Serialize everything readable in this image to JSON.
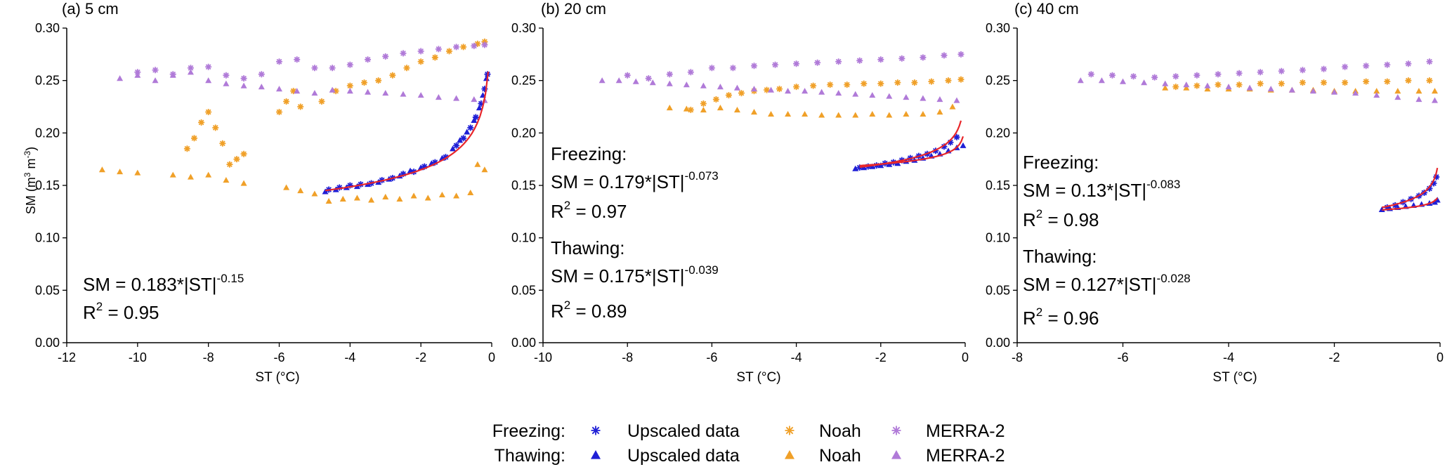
{
  "colors": {
    "upscaled": "#1f1fd6",
    "noah": "#f0a028",
    "merra": "#b07ad8",
    "fit": "#e8262a",
    "axis": "#000000"
  },
  "legend": {
    "freezing_label": "Freezing:",
    "thawing_label": "Thawing:",
    "freezing_marker": "star",
    "thawing_marker": "triangle",
    "series": [
      "Upscaled data",
      "Noah",
      "MERRA-2"
    ]
  },
  "chart_data": [
    {
      "type": "scatter",
      "title": "(a) 5 cm",
      "xlabel": "ST (°C)",
      "ylabel": "SM (m3 m-3)",
      "xlim": [
        -12,
        0
      ],
      "ylim": [
        0.0,
        0.3
      ],
      "xticks": [
        -12,
        -10,
        -8,
        -6,
        -4,
        -2,
        0
      ],
      "yticks": [
        0.0,
        0.05,
        0.1,
        0.15,
        0.2,
        0.25,
        0.3
      ],
      "xtick_labels": [
        "-12",
        "-10",
        "-8",
        "-6",
        "-4",
        "-2",
        "0"
      ],
      "ytick_labels": [
        "0.00",
        "0.05",
        "0.10",
        "0.15",
        "0.20",
        "0.25",
        "0.30"
      ],
      "annotations": [
        {
          "eq_prefix": "SM = 0.183*|ST|",
          "exponent": "-0.15",
          "r2_prefix": "R",
          "r2_sup": "2",
          "r2_value": " = 0.95"
        }
      ],
      "fits": [
        {
          "phase": "freezing",
          "a": 0.183,
          "b": -0.15,
          "xmin": -4.7,
          "xmax": -0.1
        }
      ],
      "series": [
        {
          "name": "Upscaled data",
          "phase": "freezing",
          "marker": "star",
          "x": [
            -4.6,
            -4.3,
            -4.0,
            -3.7,
            -3.4,
            -3.1,
            -2.8,
            -2.5,
            -2.2,
            -1.9,
            -1.6,
            -1.3,
            -1.0,
            -0.8,
            -0.6,
            -0.45,
            -0.3,
            -0.2,
            -0.12
          ],
          "y": [
            0.146,
            0.148,
            0.15,
            0.151,
            0.152,
            0.155,
            0.157,
            0.161,
            0.163,
            0.168,
            0.172,
            0.177,
            0.188,
            0.195,
            0.205,
            0.215,
            0.228,
            0.242,
            0.256
          ]
        },
        {
          "name": "Upscaled data",
          "phase": "thawing",
          "marker": "triangle",
          "x": [
            -4.7,
            -4.4,
            -4.1,
            -3.8,
            -3.5,
            -3.2,
            -2.9,
            -2.6,
            -2.3,
            -2.0,
            -1.7,
            -1.4,
            -1.1,
            -0.9,
            -0.7,
            -0.5,
            -0.35,
            -0.25,
            -0.15
          ],
          "y": [
            0.144,
            0.146,
            0.148,
            0.149,
            0.151,
            0.153,
            0.156,
            0.159,
            0.164,
            0.167,
            0.171,
            0.176,
            0.185,
            0.193,
            0.201,
            0.212,
            0.224,
            0.236,
            0.252
          ]
        },
        {
          "name": "Noah",
          "phase": "freezing",
          "marker": "star",
          "x": [
            -8.6,
            -8.4,
            -8.2,
            -8.0,
            -7.8,
            -7.6,
            -7.4,
            -7.2,
            -7.0,
            -6.0,
            -5.8,
            -5.6,
            -5.4,
            -4.8,
            -4.4,
            -4.0,
            -3.6,
            -3.2,
            -2.8,
            -2.4,
            -2.0,
            -1.6,
            -1.2,
            -0.8,
            -0.4,
            -0.2
          ],
          "y": [
            0.185,
            0.195,
            0.21,
            0.22,
            0.205,
            0.19,
            0.17,
            0.175,
            0.18,
            0.22,
            0.23,
            0.24,
            0.225,
            0.23,
            0.24,
            0.245,
            0.248,
            0.25,
            0.255,
            0.262,
            0.268,
            0.272,
            0.278,
            0.282,
            0.285,
            0.287
          ]
        },
        {
          "name": "Noah",
          "phase": "thawing",
          "marker": "triangle",
          "x": [
            -11.0,
            -10.5,
            -10.0,
            -9.0,
            -8.5,
            -8.0,
            -7.5,
            -7.0,
            -5.8,
            -5.4,
            -5.0,
            -4.6,
            -4.2,
            -3.8,
            -3.4,
            -3.0,
            -2.6,
            -2.2,
            -1.8,
            -1.4,
            -1.0,
            -0.6,
            -0.4,
            -0.2
          ],
          "y": [
            0.165,
            0.163,
            0.162,
            0.16,
            0.158,
            0.16,
            0.155,
            0.152,
            0.148,
            0.145,
            0.142,
            0.135,
            0.137,
            0.138,
            0.136,
            0.139,
            0.137,
            0.14,
            0.138,
            0.141,
            0.14,
            0.143,
            0.17,
            0.165
          ]
        },
        {
          "name": "MERRA-2",
          "phase": "freezing",
          "marker": "star",
          "x": [
            -10.0,
            -9.5,
            -9.0,
            -8.5,
            -8.0,
            -7.5,
            -7.0,
            -6.5,
            -6.0,
            -5.5,
            -5.0,
            -4.5,
            -4.0,
            -3.5,
            -3.0,
            -2.5,
            -2.0,
            -1.5,
            -1.0,
            -0.5,
            -0.2
          ],
          "y": [
            0.258,
            0.26,
            0.256,
            0.262,
            0.263,
            0.255,
            0.252,
            0.256,
            0.268,
            0.27,
            0.262,
            0.262,
            0.265,
            0.27,
            0.273,
            0.276,
            0.278,
            0.28,
            0.282,
            0.283,
            0.284
          ]
        },
        {
          "name": "MERRA-2",
          "phase": "thawing",
          "marker": "triangle",
          "x": [
            -10.5,
            -10.0,
            -9.5,
            -9.0,
            -8.5,
            -8.0,
            -7.5,
            -7.0,
            -6.5,
            -6.0,
            -5.5,
            -5.0,
            -4.5,
            -4.0,
            -3.5,
            -3.0,
            -2.5,
            -2.0,
            -1.5,
            -1.0,
            -0.5,
            -0.2
          ],
          "y": [
            0.252,
            0.255,
            0.25,
            0.255,
            0.258,
            0.25,
            0.247,
            0.245,
            0.244,
            0.242,
            0.24,
            0.238,
            0.241,
            0.24,
            0.239,
            0.238,
            0.237,
            0.236,
            0.234,
            0.233,
            0.232,
            0.231
          ]
        }
      ]
    },
    {
      "type": "scatter",
      "title": "(b) 20 cm",
      "xlabel": "ST (°C)",
      "ylabel": "",
      "xlim": [
        -10,
        0
      ],
      "ylim": [
        0.0,
        0.3
      ],
      "xticks": [
        -10,
        -8,
        -6,
        -4,
        -2,
        0
      ],
      "yticks": [
        0.0,
        0.05,
        0.1,
        0.15,
        0.2,
        0.25,
        0.3
      ],
      "xtick_labels": [
        "-10",
        "-8",
        "-6",
        "-4",
        "-2",
        "0"
      ],
      "ytick_labels": [
        "0.00",
        "0.05",
        "0.10",
        "0.15",
        "0.20",
        "0.25",
        "0.30"
      ],
      "annotations": [
        {
          "heading": "Freezing:",
          "eq_prefix": "SM = 0.179*|ST|",
          "exponent": "-0.073",
          "r2_prefix": "R",
          "r2_sup": "2",
          "r2_value": " = 0.97"
        },
        {
          "heading": "Thawing:",
          "eq_prefix": "SM = 0.175*|ST|",
          "exponent": "-0.039",
          "r2_prefix": "R",
          "r2_sup": "2",
          "r2_value": " = 0.89"
        }
      ],
      "fits": [
        {
          "phase": "freezing",
          "a": 0.179,
          "b": -0.073,
          "xmin": -2.5,
          "xmax": -0.1
        },
        {
          "phase": "thawing",
          "a": 0.175,
          "b": -0.039,
          "xmin": -2.5,
          "xmax": -0.05
        }
      ],
      "series": [
        {
          "name": "Upscaled data",
          "phase": "freezing",
          "marker": "star",
          "x": [
            -2.5,
            -2.3,
            -2.1,
            -1.9,
            -1.7,
            -1.5,
            -1.3,
            -1.1,
            -0.9,
            -0.7,
            -0.5,
            -0.35,
            -0.2
          ],
          "y": [
            0.167,
            0.168,
            0.169,
            0.171,
            0.172,
            0.174,
            0.176,
            0.178,
            0.18,
            0.183,
            0.187,
            0.191,
            0.196
          ]
        },
        {
          "name": "Upscaled data",
          "phase": "thawing",
          "marker": "triangle",
          "x": [
            -2.6,
            -2.4,
            -2.2,
            -2.0,
            -1.8,
            -1.6,
            -1.4,
            -1.2,
            -1.0,
            -0.8,
            -0.6,
            -0.4,
            -0.2,
            -0.05
          ],
          "y": [
            0.166,
            0.167,
            0.168,
            0.169,
            0.17,
            0.171,
            0.173,
            0.174,
            0.176,
            0.178,
            0.18,
            0.183,
            0.186,
            0.188
          ]
        },
        {
          "name": "Noah",
          "phase": "freezing",
          "marker": "star",
          "x": [
            -6.5,
            -6.2,
            -5.9,
            -5.6,
            -5.3,
            -5.0,
            -4.7,
            -4.4,
            -4.0,
            -3.6,
            -3.2,
            -2.8,
            -2.4,
            -2.0,
            -1.6,
            -1.2,
            -0.8,
            -0.4,
            -0.1
          ],
          "y": [
            0.222,
            0.228,
            0.232,
            0.236,
            0.238,
            0.24,
            0.241,
            0.242,
            0.244,
            0.245,
            0.246,
            0.246,
            0.247,
            0.247,
            0.248,
            0.248,
            0.249,
            0.25,
            0.251
          ]
        },
        {
          "name": "Noah",
          "phase": "thawing",
          "marker": "triangle",
          "x": [
            -7.0,
            -6.6,
            -6.2,
            -5.8,
            -5.4,
            -5.0,
            -4.6,
            -4.2,
            -3.8,
            -3.4,
            -3.0,
            -2.6,
            -2.2,
            -1.8,
            -1.4,
            -1.0,
            -0.6,
            -0.3
          ],
          "y": [
            0.224,
            0.223,
            0.222,
            0.224,
            0.222,
            0.22,
            0.218,
            0.218,
            0.218,
            0.217,
            0.217,
            0.217,
            0.218,
            0.217,
            0.218,
            0.218,
            0.22,
            0.225
          ]
        },
        {
          "name": "MERRA-2",
          "phase": "freezing",
          "marker": "star",
          "x": [
            -8.0,
            -7.5,
            -7.0,
            -6.5,
            -6.0,
            -5.5,
            -5.0,
            -4.5,
            -4.0,
            -3.5,
            -3.0,
            -2.5,
            -2.0,
            -1.5,
            -1.0,
            -0.5,
            -0.1
          ],
          "y": [
            0.255,
            0.252,
            0.256,
            0.258,
            0.262,
            0.262,
            0.264,
            0.265,
            0.266,
            0.267,
            0.268,
            0.269,
            0.27,
            0.271,
            0.272,
            0.274,
            0.275
          ]
        },
        {
          "name": "MERRA-2",
          "phase": "thawing",
          "marker": "triangle",
          "x": [
            -8.6,
            -8.2,
            -7.8,
            -7.4,
            -7.0,
            -6.6,
            -6.2,
            -5.8,
            -5.4,
            -5.0,
            -4.6,
            -4.2,
            -3.8,
            -3.4,
            -3.0,
            -2.6,
            -2.2,
            -1.8,
            -1.4,
            -1.0,
            -0.6,
            -0.2
          ],
          "y": [
            0.25,
            0.25,
            0.249,
            0.248,
            0.247,
            0.246,
            0.245,
            0.244,
            0.243,
            0.242,
            0.241,
            0.24,
            0.24,
            0.239,
            0.238,
            0.237,
            0.236,
            0.235,
            0.234,
            0.233,
            0.232,
            0.231
          ]
        }
      ]
    },
    {
      "type": "scatter",
      "title": "(c) 40 cm",
      "xlabel": "ST (°C)",
      "ylabel": "",
      "xlim": [
        -8,
        0
      ],
      "ylim": [
        0.0,
        0.3
      ],
      "xticks": [
        -8,
        -6,
        -4,
        -2,
        0
      ],
      "yticks": [
        0.0,
        0.05,
        0.1,
        0.15,
        0.2,
        0.25,
        0.3
      ],
      "xtick_labels": [
        "-8",
        "-6",
        "-4",
        "-2",
        "0"
      ],
      "ytick_labels": [
        "0.00",
        "0.05",
        "0.10",
        "0.15",
        "0.20",
        "0.25",
        "0.30"
      ],
      "annotations": [
        {
          "heading": "Freezing:",
          "eq_prefix": "SM = 0.13*|ST|",
          "exponent": "-0.083",
          "r2_prefix": "R",
          "r2_sup": "2",
          "r2_value": " = 0.98"
        },
        {
          "heading": "Thawing:",
          "eq_prefix": "SM = 0.127*|ST|",
          "exponent": "-0.028",
          "r2_prefix": "R",
          "r2_sup": "2",
          "r2_value": " = 0.96"
        }
      ],
      "fits": [
        {
          "phase": "freezing",
          "a": 0.13,
          "b": -0.083,
          "xmin": -1.1,
          "xmax": -0.05
        },
        {
          "phase": "thawing",
          "a": 0.127,
          "b": -0.028,
          "xmin": -1.1,
          "xmax": -0.05
        }
      ],
      "series": [
        {
          "name": "Upscaled data",
          "phase": "freezing",
          "marker": "star",
          "x": [
            -1.0,
            -0.85,
            -0.7,
            -0.55,
            -0.4,
            -0.3,
            -0.2,
            -0.12,
            -0.07
          ],
          "y": [
            0.129,
            0.131,
            0.134,
            0.137,
            0.14,
            0.143,
            0.147,
            0.152,
            0.158
          ]
        },
        {
          "name": "Upscaled data",
          "phase": "thawing",
          "marker": "triangle",
          "x": [
            -1.1,
            -0.95,
            -0.8,
            -0.65,
            -0.5,
            -0.35,
            -0.2,
            -0.1,
            -0.05
          ],
          "y": [
            0.127,
            0.128,
            0.129,
            0.13,
            0.131,
            0.132,
            0.133,
            0.134,
            0.136
          ]
        },
        {
          "name": "Noah",
          "phase": "freezing",
          "marker": "star",
          "x": [
            -5.0,
            -4.6,
            -4.2,
            -3.8,
            -3.4,
            -3.0,
            -2.6,
            -2.2,
            -1.8,
            -1.4,
            -1.0,
            -0.6,
            -0.2
          ],
          "y": [
            0.244,
            0.245,
            0.246,
            0.246,
            0.247,
            0.247,
            0.248,
            0.248,
            0.248,
            0.249,
            0.249,
            0.25,
            0.25
          ]
        },
        {
          "name": "Noah",
          "phase": "thawing",
          "marker": "triangle",
          "x": [
            -5.2,
            -4.8,
            -4.4,
            -4.0,
            -3.6,
            -3.2,
            -2.8,
            -2.4,
            -2.0,
            -1.6,
            -1.2,
            -0.8,
            -0.4,
            -0.1
          ],
          "y": [
            0.243,
            0.243,
            0.242,
            0.242,
            0.242,
            0.241,
            0.241,
            0.241,
            0.24,
            0.24,
            0.24,
            0.24,
            0.24,
            0.24
          ]
        },
        {
          "name": "MERRA-2",
          "phase": "freezing",
          "marker": "star",
          "x": [
            -6.6,
            -6.2,
            -5.8,
            -5.4,
            -5.0,
            -4.6,
            -4.2,
            -3.8,
            -3.4,
            -3.0,
            -2.6,
            -2.2,
            -1.8,
            -1.4,
            -1.0,
            -0.6,
            -0.2
          ],
          "y": [
            0.256,
            0.255,
            0.254,
            0.253,
            0.254,
            0.255,
            0.256,
            0.257,
            0.258,
            0.259,
            0.26,
            0.261,
            0.263,
            0.264,
            0.265,
            0.266,
            0.268
          ]
        },
        {
          "name": "MERRA-2",
          "phase": "thawing",
          "marker": "triangle",
          "x": [
            -6.8,
            -6.4,
            -6.0,
            -5.6,
            -5.2,
            -4.8,
            -4.4,
            -4.0,
            -3.6,
            -3.2,
            -2.8,
            -2.4,
            -2.0,
            -1.6,
            -1.2,
            -0.8,
            -0.4,
            -0.1
          ],
          "y": [
            0.25,
            0.25,
            0.249,
            0.248,
            0.247,
            0.246,
            0.245,
            0.244,
            0.243,
            0.242,
            0.241,
            0.24,
            0.239,
            0.238,
            0.236,
            0.234,
            0.232,
            0.231
          ]
        }
      ]
    }
  ]
}
